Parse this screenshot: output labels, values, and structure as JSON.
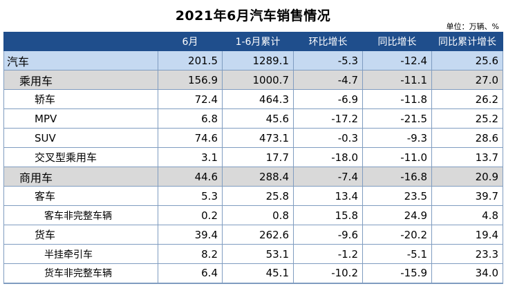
{
  "title": "2021年6月汽车销售情况",
  "unit": "单位：万辆、%",
  "columns": [
    "",
    "6月",
    "1-6月累计",
    "环比增长",
    "同比增长",
    "同比累计增长"
  ],
  "rows": [
    {
      "level": 0,
      "cells": [
        "汽车",
        "201.5",
        "1289.1",
        "-5.3",
        "-12.4",
        "25.6"
      ]
    },
    {
      "level": 1,
      "cells": [
        "乘用车",
        "156.9",
        "1000.7",
        "-4.7",
        "-11.1",
        "27.0"
      ]
    },
    {
      "level": 2,
      "cells": [
        "轿车",
        "72.4",
        "464.3",
        "-6.9",
        "-11.8",
        "26.2"
      ]
    },
    {
      "level": 2,
      "cells": [
        "MPV",
        "6.8",
        "45.6",
        "-17.2",
        "-21.5",
        "25.2"
      ]
    },
    {
      "level": 2,
      "cells": [
        "SUV",
        "74.6",
        "473.1",
        "-0.3",
        "-9.3",
        "28.6"
      ]
    },
    {
      "level": 2,
      "cells": [
        "交叉型乘用车",
        "3.1",
        "17.7",
        "-18.0",
        "-11.0",
        "13.7"
      ]
    },
    {
      "level": 1,
      "cells": [
        "商用车",
        "44.6",
        "288.4",
        "-7.4",
        "-16.8",
        "20.9"
      ]
    },
    {
      "level": 2,
      "cells": [
        "客车",
        "5.3",
        "25.8",
        "13.4",
        "23.5",
        "39.7"
      ]
    },
    {
      "level": 3,
      "cells": [
        "客车非完整车辆",
        "0.2",
        "0.8",
        "15.8",
        "24.9",
        "4.8"
      ]
    },
    {
      "level": 2,
      "cells": [
        "货车",
        "39.4",
        "262.6",
        "-9.6",
        "-20.2",
        "19.4"
      ]
    },
    {
      "level": 3,
      "cells": [
        "半挂牵引车",
        "8.2",
        "53.1",
        "-1.2",
        "-5.1",
        "23.3"
      ]
    },
    {
      "level": 3,
      "cells": [
        "货车非完整车辆",
        "6.4",
        "45.1",
        "-10.2",
        "-15.9",
        "34.0"
      ]
    }
  ]
}
